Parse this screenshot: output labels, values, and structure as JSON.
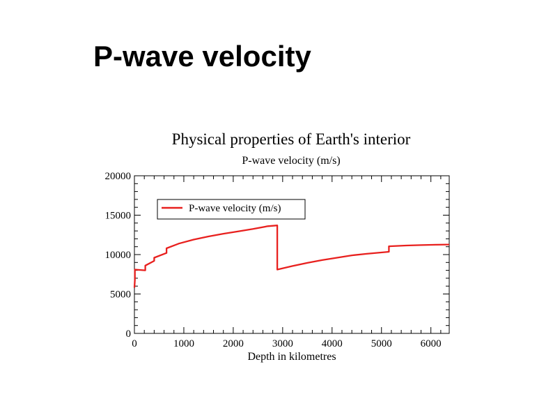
{
  "slide": {
    "title": "P-wave velocity"
  },
  "chart_data": {
    "type": "line",
    "title": "Physical properties of Earth's interior",
    "subtitle": "P-wave velocity (m/s)",
    "xlabel": "Depth in kilometres",
    "ylabel": "",
    "xlim": [
      0,
      6371
    ],
    "ylim": [
      0,
      20000
    ],
    "xticks": [
      0,
      1000,
      2000,
      3000,
      4000,
      5000,
      6000
    ],
    "yticks": [
      0,
      5000,
      10000,
      15000,
      20000
    ],
    "grid": false,
    "legend": {
      "position": "top-left",
      "box": true
    },
    "series": [
      {
        "name": "P-wave velocity (m/s)",
        "color": "#e8201e",
        "x": [
          0,
          10,
          10,
          220,
          220,
          400,
          400,
          650,
          650,
          900,
          1200,
          1500,
          1800,
          2100,
          2400,
          2700,
          2891,
          2891,
          3200,
          3500,
          3800,
          4100,
          4400,
          4700,
          5150,
          5150,
          5500,
          5800,
          6100,
          6371
        ],
        "y": [
          5800,
          6800,
          8100,
          8000,
          8600,
          9200,
          9600,
          10200,
          10800,
          11400,
          11900,
          12300,
          12650,
          12950,
          13250,
          13600,
          13700,
          8100,
          8550,
          8950,
          9300,
          9600,
          9900,
          10100,
          10350,
          11050,
          11150,
          11200,
          11250,
          11270
        ]
      }
    ]
  }
}
